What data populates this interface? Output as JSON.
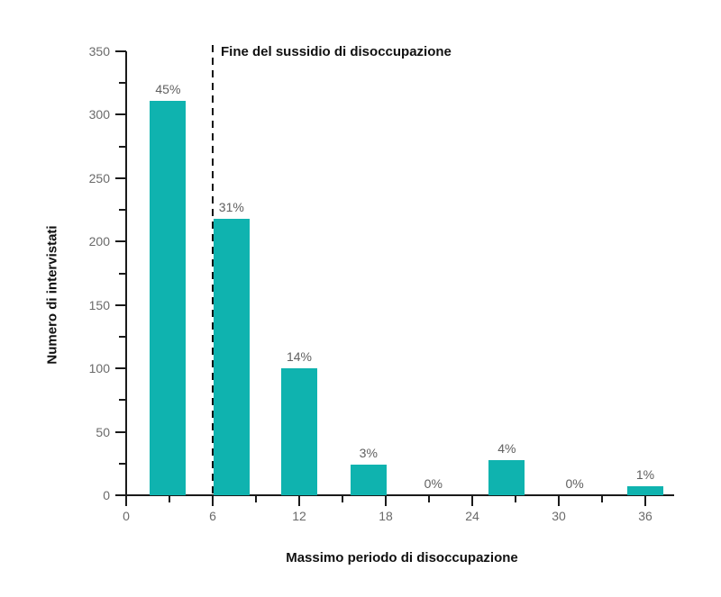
{
  "chart_data": {
    "type": "bar",
    "title": "",
    "xlabel": "Massimo periodo di disoccupazione",
    "ylabel": "Numero di intervistati",
    "x_axis": {
      "min": 0,
      "max": 38,
      "major_ticks": [
        0,
        6,
        12,
        18,
        24,
        30,
        36
      ],
      "minor_ticks": [
        3,
        9,
        15,
        21,
        27,
        33
      ]
    },
    "y_axis": {
      "min": 0,
      "max": 350,
      "major_ticks": [
        0,
        50,
        100,
        150,
        200,
        250,
        300,
        350
      ],
      "minor_ticks": [
        25,
        75,
        125,
        175,
        225,
        275,
        325
      ]
    },
    "bars": [
      {
        "x": 2.9,
        "value": 311,
        "label": "45%"
      },
      {
        "x": 7.3,
        "value": 218,
        "label": "31%"
      },
      {
        "x": 12.0,
        "value": 100,
        "label": "14%"
      },
      {
        "x": 16.8,
        "value": 24,
        "label": "3%"
      },
      {
        "x": 21.3,
        "value": 0,
        "label": "0%"
      },
      {
        "x": 26.4,
        "value": 28,
        "label": "4%"
      },
      {
        "x": 31.1,
        "value": 0,
        "label": "0%"
      },
      {
        "x": 36.0,
        "value": 7,
        "label": "1%"
      }
    ],
    "annotation": {
      "text": "Fine del sussidio di disoccupazione",
      "x": 6
    },
    "grid": false,
    "legend": false,
    "colors": {
      "bar": "#0fb3af",
      "axis": "#1a1a1a",
      "tick_label": "#6a6a6a",
      "bar_label": "#5f5f5f",
      "text": "#111111",
      "background": "#ffffff"
    }
  }
}
